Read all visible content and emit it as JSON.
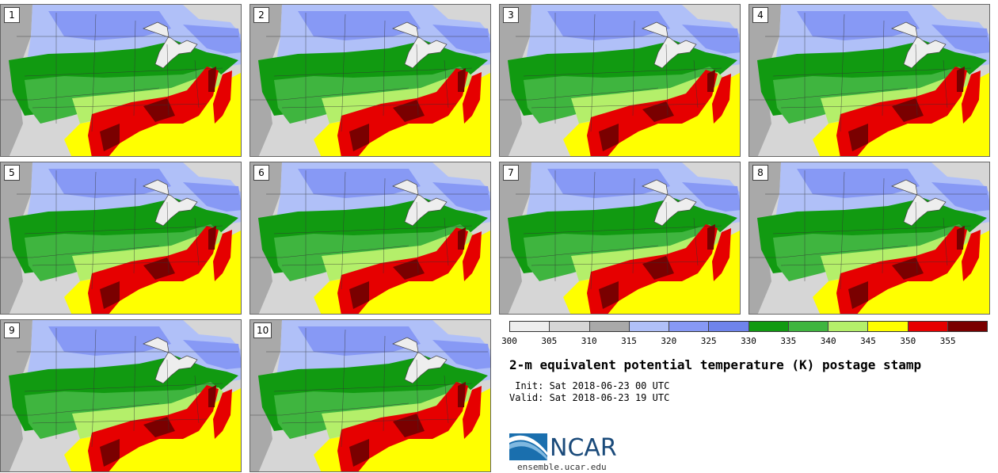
{
  "panels": [
    {
      "label": "1"
    },
    {
      "label": "2"
    },
    {
      "label": "3"
    },
    {
      "label": "4"
    },
    {
      "label": "5"
    },
    {
      "label": "6"
    },
    {
      "label": "7"
    },
    {
      "label": "8"
    },
    {
      "label": "9"
    },
    {
      "label": "10"
    }
  ],
  "colorbar": {
    "ticks": [
      "300",
      "305",
      "310",
      "315",
      "320",
      "325",
      "330",
      "335",
      "340",
      "345",
      "350",
      "355"
    ],
    "colors": [
      "#eeeeee",
      "#d6d6d6",
      "#a9a9a9",
      "#b0c0f8",
      "#8799f5",
      "#6f84ec",
      "#119a11",
      "#3fb53f",
      "#b4ef6a",
      "#ffff00",
      "#e60000",
      "#7a0000"
    ]
  },
  "title": "2-m equivalent potential temperature (K) postage stamp",
  "init_line": " Init: Sat 2018-06-23 00 UTC",
  "valid_line": "Valid: Sat 2018-06-23 19 UTC",
  "logo": {
    "text": "NCAR",
    "url": "ensemble.ucar.edu"
  },
  "map_colors": {
    "land_gray": "#a9a9a9",
    "light_gray": "#d6d6d6",
    "lake": "#eeeeee",
    "light_blue": "#b0c0f8",
    "blue": "#8799f5",
    "dark_green": "#119a11",
    "green": "#3fb53f",
    "light_green": "#b4ef6a",
    "yellow": "#ffff00",
    "red": "#e60000",
    "dark_red": "#7a0000"
  }
}
